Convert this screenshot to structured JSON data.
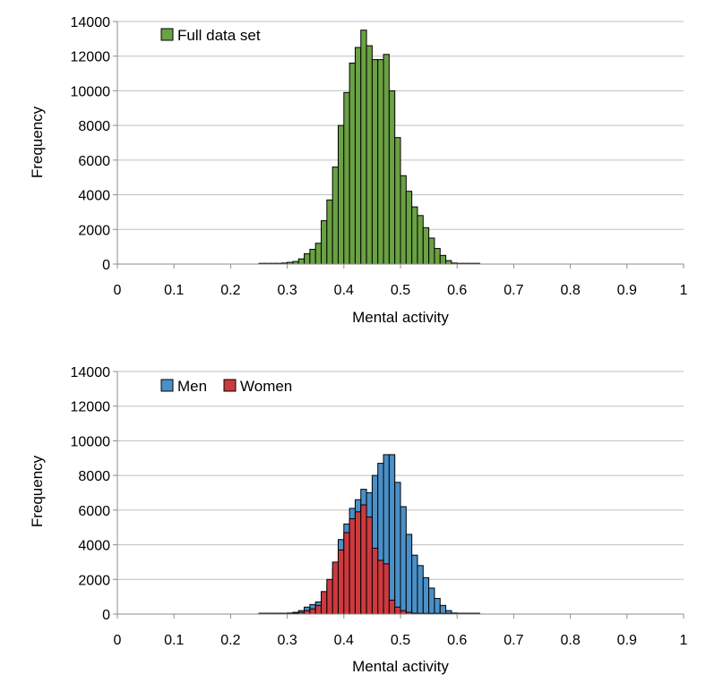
{
  "chart_data": [
    {
      "type": "bar",
      "bin_width": 0.01,
      "x": [
        0.25,
        0.26,
        0.27,
        0.28,
        0.29,
        0.3,
        0.31,
        0.32,
        0.33,
        0.34,
        0.35,
        0.36,
        0.37,
        0.38,
        0.39,
        0.4,
        0.41,
        0.42,
        0.43,
        0.44,
        0.45,
        0.46,
        0.47,
        0.48,
        0.49,
        0.5,
        0.51,
        0.52,
        0.53,
        0.54,
        0.55,
        0.56,
        0.57,
        0.58,
        0.59,
        0.6,
        0.61,
        0.62,
        0.63
      ],
      "series": [
        {
          "name": "Full data set",
          "color": "#6aa143",
          "values": [
            20,
            20,
            30,
            40,
            60,
            100,
            150,
            300,
            600,
            850,
            1200,
            2500,
            3700,
            5600,
            8000,
            9900,
            11600,
            12500,
            13500,
            12600,
            11800,
            11800,
            12100,
            10000,
            7300,
            5100,
            4200,
            3300,
            2800,
            2100,
            1500,
            900,
            500,
            200,
            60,
            20,
            10,
            5,
            5
          ]
        }
      ],
      "xlabel": "Mental activity",
      "ylabel": "Frequency",
      "xlim": [
        0,
        1
      ],
      "ylim": [
        0,
        14000
      ],
      "x_ticks": [
        "0",
        "0.1",
        "0.2",
        "0.3",
        "0.4",
        "0.5",
        "0.6",
        "0.7",
        "0.8",
        "0.9",
        "1"
      ],
      "y_ticks": [
        "0",
        "2000",
        "4000",
        "6000",
        "8000",
        "10000",
        "12000",
        "14000"
      ],
      "grid": "horizontal",
      "legend": "top-left"
    },
    {
      "type": "bar",
      "bin_width": 0.01,
      "x": [
        0.25,
        0.26,
        0.27,
        0.28,
        0.29,
        0.3,
        0.31,
        0.32,
        0.33,
        0.34,
        0.35,
        0.36,
        0.37,
        0.38,
        0.39,
        0.4,
        0.41,
        0.42,
        0.43,
        0.44,
        0.45,
        0.46,
        0.47,
        0.48,
        0.49,
        0.5,
        0.51,
        0.52,
        0.53,
        0.54,
        0.55,
        0.56,
        0.57,
        0.58,
        0.59,
        0.6,
        0.61,
        0.62,
        0.63
      ],
      "series": [
        {
          "name": "Men",
          "color": "#4a90c8",
          "values": [
            10,
            10,
            15,
            20,
            30,
            60,
            100,
            200,
            400,
            550,
            700,
            1200,
            1700,
            2600,
            4300,
            5200,
            6100,
            6600,
            7200,
            7000,
            8000,
            8700,
            9200,
            9200,
            7600,
            6200,
            4600,
            3400,
            2800,
            2100,
            1500,
            900,
            500,
            200,
            60,
            20,
            10,
            5,
            5
          ]
        },
        {
          "name": "Women",
          "color": "#cc3a3f",
          "values": [
            10,
            10,
            15,
            20,
            30,
            40,
            50,
            100,
            200,
            300,
            500,
            1300,
            2000,
            3000,
            3700,
            4700,
            5500,
            5900,
            6300,
            5600,
            3800,
            3100,
            2900,
            800,
            400,
            200,
            100,
            50,
            20,
            10,
            0,
            0,
            0,
            0,
            0,
            0,
            0,
            0,
            0
          ]
        }
      ],
      "xlabel": "Mental activity",
      "ylabel": "Frequency",
      "xlim": [
        0,
        1
      ],
      "ylim": [
        0,
        14000
      ],
      "x_ticks": [
        "0",
        "0.1",
        "0.2",
        "0.3",
        "0.4",
        "0.5",
        "0.6",
        "0.7",
        "0.8",
        "0.9",
        "1"
      ],
      "y_ticks": [
        "0",
        "2000",
        "4000",
        "6000",
        "8000",
        "10000",
        "12000",
        "14000"
      ],
      "grid": "horizontal",
      "legend": "top-left"
    }
  ]
}
